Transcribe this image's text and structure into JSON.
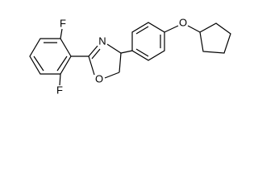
{
  "atoms": [
    {
      "label": "F"
    },
    {
      "label": "F"
    },
    {
      "label": "N"
    },
    {
      "label": "O"
    },
    {
      "label": "O"
    }
  ]
}
